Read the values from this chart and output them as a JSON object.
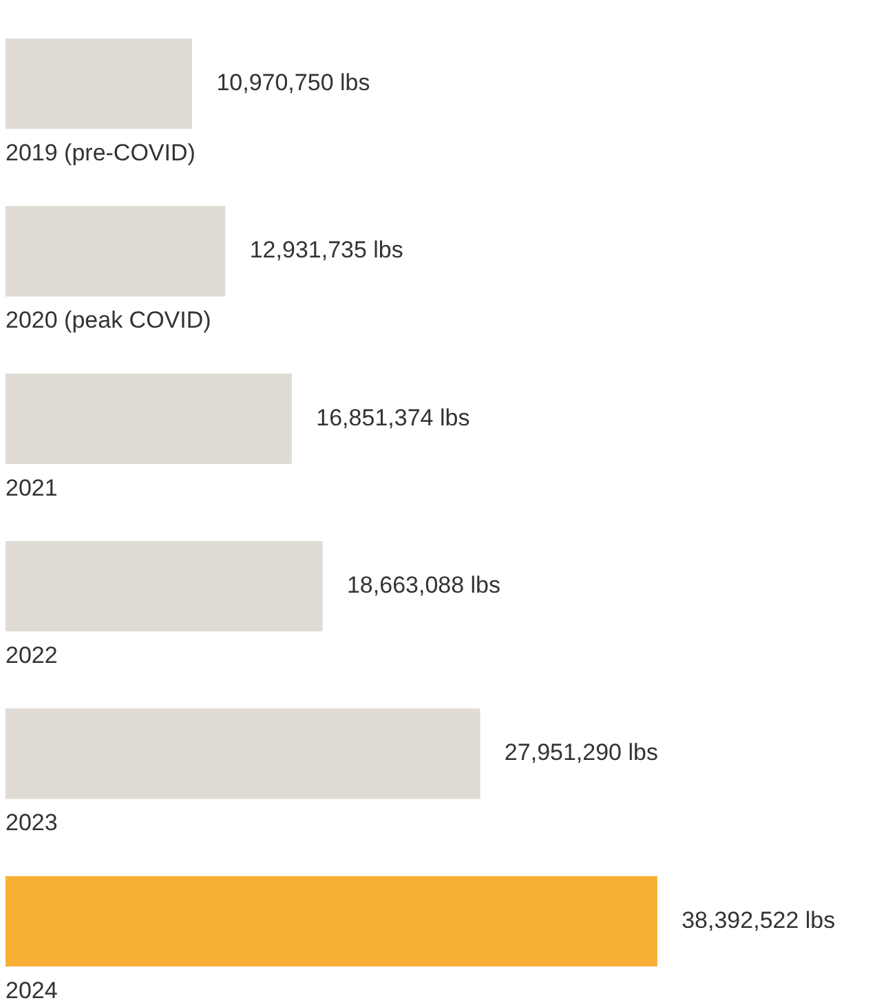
{
  "chart_data": {
    "type": "bar",
    "orientation": "horizontal",
    "categories": [
      "2019 (pre-COVID)",
      "2020 (peak COVID)",
      "2021",
      "2022",
      "2023",
      "2024"
    ],
    "values": [
      10970750,
      12931735,
      16851374,
      18663088,
      27951290,
      38392522
    ],
    "colors": [
      "#e0dbd5",
      "#e0dbd5",
      "#e0dbd5",
      "#e0dbd5",
      "#e0dbd5",
      "#f7b035"
    ],
    "value_labels": [
      "10,970,750 lbs",
      "12,931,735 lbs",
      "16,851,374 lbs",
      "18,663,088 lbs",
      "27,951,290 lbs",
      "38,392,522 lbs"
    ],
    "legend": false
  }
}
